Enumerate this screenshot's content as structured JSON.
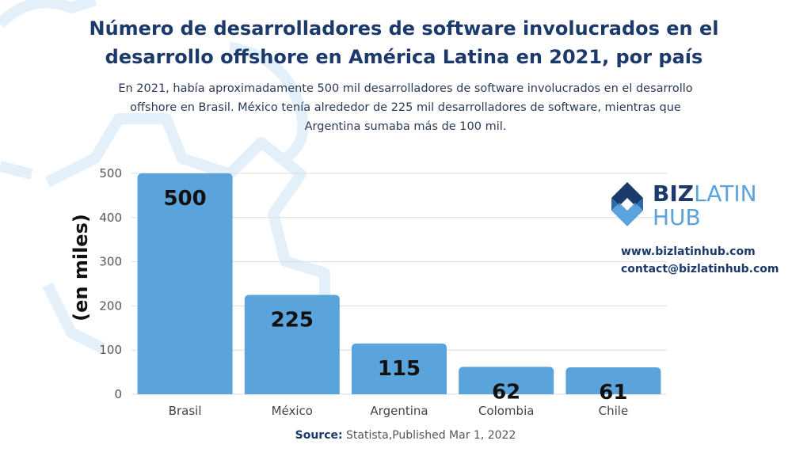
{
  "title": "Número de desarrolladores de software involucrados en el desarrollo offshore en América Latina en 2021, por país",
  "subtitle": "En 2021, había aproximadamente 500 mil desarrolladores de software involucrados en el desarrollo offshore en Brasil. México tenía alrededor de 225 mil desarrolladores de software, mientras que Argentina sumaba más de 100 mil.",
  "logo": {
    "name_biz": "BIZ",
    "name_latin": "LATIN",
    "name_hub": "HUB",
    "icon": "bizlatinhub-diamond-logo"
  },
  "contact": {
    "website": "www.bizlatinhub.com",
    "email": "contact@bizlatinhub.com"
  },
  "source": {
    "label": "Source:",
    "text": "Statista,Published Mar 1, 2022"
  },
  "colors": {
    "bar": "#5aa3db",
    "title": "#1b3a6b",
    "decor": "#e3f0fa",
    "logo_dark": "#1b3a6b",
    "logo_light": "#5aa3db"
  },
  "chart_data": {
    "type": "bar",
    "categories": [
      "Brasil",
      "México",
      "Argentina",
      "Colombia",
      "Chile"
    ],
    "values": [
      500,
      225,
      115,
      62,
      61
    ],
    "data_labels": [
      "500",
      "225",
      "115",
      "62",
      "61"
    ],
    "ylabel": "(en miles)",
    "ylim": [
      0,
      500
    ],
    "yticks": [
      0,
      100,
      200,
      300,
      400,
      500
    ],
    "grid": true
  }
}
